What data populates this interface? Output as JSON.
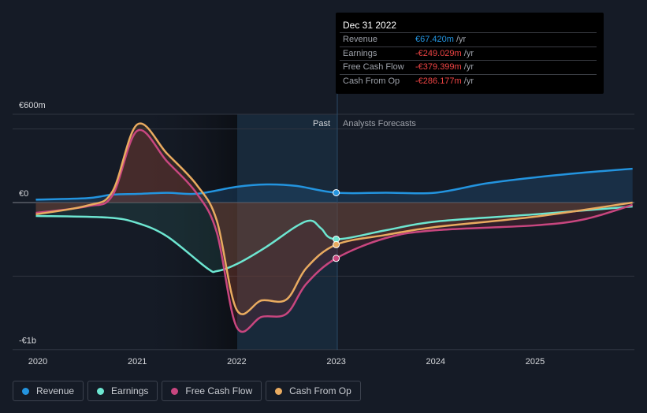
{
  "chart_data": {
    "type": "line",
    "title": "",
    "y_ticks": [
      "€600m",
      "€0",
      "-€1b"
    ],
    "ylim": [
      -1000,
      600
    ],
    "x_ticks": [
      "2020",
      "2021",
      "2022",
      "2023",
      "2024",
      "2025"
    ],
    "xlim": [
      2019.78,
      2025.98
    ],
    "past_label": "Past",
    "forecast_label": "Analysts Forecasts",
    "divider_x": 2023,
    "series": [
      {
        "name": "Revenue",
        "color": "#2394df",
        "points": [
          [
            2019.98,
            20
          ],
          [
            2020.5,
            30
          ],
          [
            2020.75,
            54
          ],
          [
            2021,
            59
          ],
          [
            2021.3,
            66
          ],
          [
            2021.6,
            60
          ],
          [
            2022,
            107
          ],
          [
            2022.3,
            123
          ],
          [
            2022.6,
            113
          ],
          [
            2023,
            67
          ],
          [
            2023.5,
            67
          ],
          [
            2024,
            67
          ],
          [
            2024.5,
            129
          ],
          [
            2025,
            171
          ],
          [
            2025.5,
            204
          ],
          [
            2025.98,
            230
          ]
        ]
      },
      {
        "name": "Earnings",
        "color": "#6de6d1",
        "points": [
          [
            2019.98,
            -91
          ],
          [
            2020.7,
            -102
          ],
          [
            2021,
            -139
          ],
          [
            2021.3,
            -230
          ],
          [
            2021.7,
            -445
          ],
          [
            2021.8,
            -466
          ],
          [
            2022,
            -418
          ],
          [
            2022.3,
            -300
          ],
          [
            2022.6,
            -161
          ],
          [
            2022.75,
            -123
          ],
          [
            2022.85,
            -177
          ],
          [
            2023,
            -249
          ],
          [
            2023.5,
            -188
          ],
          [
            2024,
            -129
          ],
          [
            2025,
            -80
          ],
          [
            2025.98,
            -27
          ]
        ]
      },
      {
        "name": "Free Cash Flow",
        "color": "#c8467f",
        "points": [
          [
            2019.98,
            -70
          ],
          [
            2020.5,
            -25
          ],
          [
            2020.75,
            48
          ],
          [
            2021,
            488
          ],
          [
            2021.3,
            279
          ],
          [
            2021.6,
            60
          ],
          [
            2021.8,
            -204
          ],
          [
            2022,
            -847
          ],
          [
            2022.25,
            -777
          ],
          [
            2022.5,
            -756
          ],
          [
            2022.7,
            -552
          ],
          [
            2023,
            -379
          ],
          [
            2023.5,
            -241
          ],
          [
            2024,
            -188
          ],
          [
            2025,
            -155
          ],
          [
            2025.5,
            -113
          ],
          [
            2025.98,
            -16
          ]
        ]
      },
      {
        "name": "Cash From Op",
        "color": "#e9ab60",
        "points": [
          [
            2019.98,
            -80
          ],
          [
            2020.5,
            -20
          ],
          [
            2020.75,
            75
          ],
          [
            2021,
            531
          ],
          [
            2021.3,
            332
          ],
          [
            2021.6,
            118
          ],
          [
            2021.8,
            -123
          ],
          [
            2022,
            -729
          ],
          [
            2022.25,
            -665
          ],
          [
            2022.5,
            -659
          ],
          [
            2022.7,
            -445
          ],
          [
            2023,
            -286
          ],
          [
            2023.5,
            -220
          ],
          [
            2024,
            -166
          ],
          [
            2025,
            -96
          ],
          [
            2025.98,
            0
          ]
        ]
      }
    ]
  },
  "tooltip": {
    "date": "Dec 31 2022",
    "rows": [
      {
        "label": "Revenue",
        "value": "€67.420m",
        "unit": " /yr",
        "color": "#2394df"
      },
      {
        "label": "Earnings",
        "value": "-€249.029m",
        "unit": " /yr",
        "color": "#ef4444"
      },
      {
        "label": "Free Cash Flow",
        "value": "-€379.399m",
        "unit": " /yr",
        "color": "#ef4444"
      },
      {
        "label": "Cash From Op",
        "value": "-€286.177m",
        "unit": " /yr",
        "color": "#ef4444"
      }
    ]
  }
}
